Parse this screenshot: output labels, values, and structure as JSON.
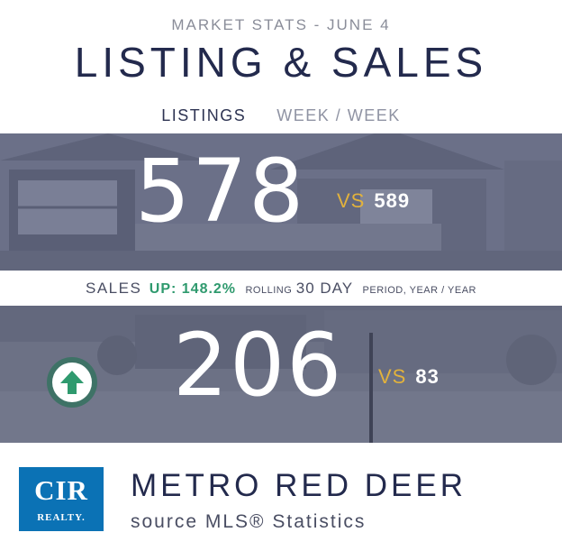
{
  "header": {
    "kicker": "MARKET STATS - JUNE 4",
    "title": "LISTING & SALES",
    "subhead_left": "LISTINGS",
    "subhead_right": "WEEK / WEEK"
  },
  "listings": {
    "current": "578",
    "vs_word": "VS",
    "previous": "589"
  },
  "sales_strip": {
    "label": "SALES",
    "change": "UP: 148.2%",
    "rolling": "ROLLING",
    "window": "30 DAY",
    "period": "PERIOD, YEAR / YEAR"
  },
  "sales": {
    "current": "206",
    "vs_word": "VS",
    "previous": "83",
    "trend_icon": "up-arrow-icon"
  },
  "footer": {
    "logo_mark": "CIR",
    "logo_text": "REALTY.",
    "title": "METRO RED DEER",
    "source": "source MLS® Statistics"
  },
  "colors": {
    "navy": "#232a4d",
    "gold": "#e2b23c",
    "green": "#2f9a6e",
    "brand_blue": "#0b72b5"
  }
}
